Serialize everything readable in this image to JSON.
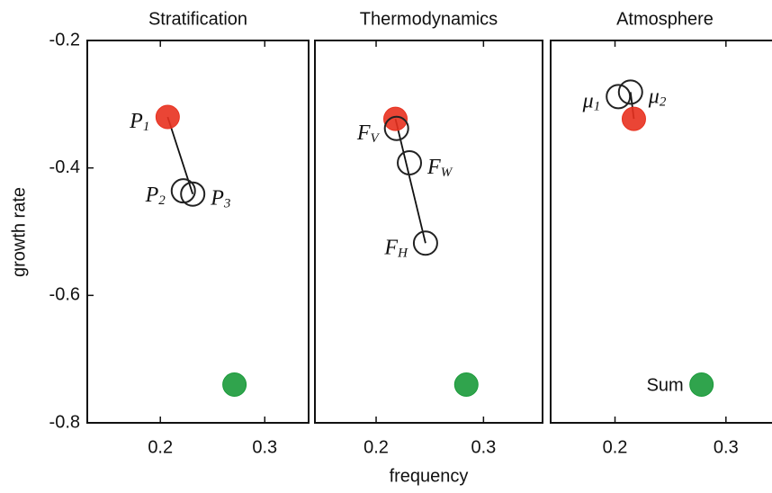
{
  "chart_data": [
    {
      "type": "scatter",
      "title": "Stratification",
      "ylabel": "growth rate",
      "xlim": [
        0.13,
        0.342
      ],
      "ylim": [
        -0.8,
        -0.2
      ],
      "xticks": [
        0.2,
        0.3
      ],
      "yticks": [
        -0.2,
        -0.4,
        -0.6,
        -0.8
      ],
      "series": [
        {
          "color": "#e8311f",
          "filled": true,
          "x": [
            0.207
          ],
          "values": [
            -0.32
          ],
          "labels": [
            "P"
          ],
          "subscripts": [
            "1"
          ]
        },
        {
          "color": "#222222",
          "filled": false,
          "x": [
            0.222,
            0.231
          ],
          "values": [
            -0.436,
            -0.441
          ],
          "labels": [
            "P",
            "P"
          ],
          "subscripts": [
            "2",
            "3"
          ]
        },
        {
          "color": "#1a9a3a",
          "filled": true,
          "x": [
            0.271
          ],
          "values": [
            -0.74
          ]
        }
      ]
    },
    {
      "type": "scatter",
      "title": "Thermodynamics",
      "xlabel": "frequency",
      "xlim": [
        0.143,
        0.355
      ],
      "ylim": [
        -0.8,
        -0.2
      ],
      "xticks": [
        0.2,
        0.3
      ],
      "series": [
        {
          "color": "#e8311f",
          "filled": true,
          "x": [
            0.218
          ],
          "values": [
            -0.323
          ]
        },
        {
          "color": "#222222",
          "filled": false,
          "x": [
            0.219,
            0.231,
            0.246
          ],
          "values": [
            -0.338,
            -0.392,
            -0.518
          ],
          "labels": [
            "F",
            "F",
            "F"
          ],
          "subscripts": [
            "V",
            "W",
            "H"
          ]
        },
        {
          "color": "#1a9a3a",
          "filled": true,
          "x": [
            0.284
          ],
          "values": [
            -0.74
          ]
        }
      ]
    },
    {
      "type": "scatter",
      "title": "Atmosphere",
      "xlim": [
        0.142,
        0.348
      ],
      "ylim": [
        -0.8,
        -0.2
      ],
      "xticks": [
        0.2,
        0.3
      ],
      "series": [
        {
          "color": "#222222",
          "filled": false,
          "x": [
            0.203,
            0.214
          ],
          "values": [
            -0.288,
            -0.281
          ],
          "labels": [
            "μ",
            "μ"
          ],
          "subscripts": [
            "1",
            "2"
          ]
        },
        {
          "color": "#e8311f",
          "filled": true,
          "x": [
            0.217
          ],
          "values": [
            -0.323
          ]
        },
        {
          "color": "#1a9a3a",
          "filled": true,
          "x": [
            0.278
          ],
          "values": [
            -0.74
          ],
          "labels": [
            "Sum"
          ]
        }
      ]
    }
  ]
}
